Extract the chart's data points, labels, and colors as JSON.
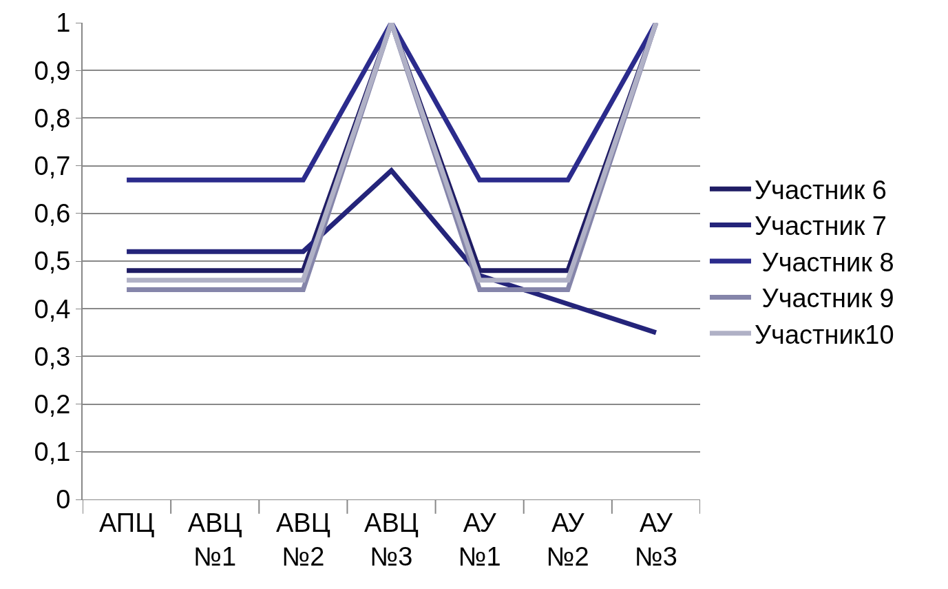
{
  "chart_data": {
    "type": "line",
    "categories": [
      "АПЦ",
      "АВЦ\n№1",
      "АВЦ\n№2",
      "АВЦ\n№3",
      "АУ\n№1",
      "АУ\n№2",
      "АУ\n№3"
    ],
    "series": [
      {
        "name": "Участник 6",
        "color": "#1f1c64",
        "values": [
          0.48,
          0.48,
          0.48,
          1,
          0.48,
          0.48,
          1
        ]
      },
      {
        "name": "Участник 7",
        "color": "#24247a",
        "values": [
          0.52,
          0.52,
          0.52,
          0.69,
          0.47,
          0.41,
          0.35
        ]
      },
      {
        "name": " Участник 8",
        "color": "#2b2b8c",
        "values": [
          0.67,
          0.67,
          0.67,
          1,
          0.67,
          0.67,
          1
        ]
      },
      {
        "name": " Участник 9",
        "color": "#8585aa",
        "values": [
          0.44,
          0.44,
          0.44,
          1,
          0.44,
          0.44,
          1
        ]
      },
      {
        "name": "Участник10",
        "color": "#b0b1c6",
        "values": [
          0.46,
          0.46,
          0.46,
          1,
          0.46,
          0.46,
          1
        ]
      }
    ],
    "ylim": [
      0,
      1
    ],
    "yticks": [
      {
        "value": 0,
        "label": "0"
      },
      {
        "value": 0.1,
        "label": "0,1"
      },
      {
        "value": 0.2,
        "label": "0,2"
      },
      {
        "value": 0.3,
        "label": "0,3"
      },
      {
        "value": 0.4,
        "label": "0,4"
      },
      {
        "value": 0.5,
        "label": "0,5"
      },
      {
        "value": 0.6,
        "label": "0,6"
      },
      {
        "value": 0.7,
        "label": "0,7"
      },
      {
        "value": 0.8,
        "label": "0,8"
      },
      {
        "value": 0.9,
        "label": "0,9"
      },
      {
        "value": 1,
        "label": "1"
      }
    ],
    "grid": "y",
    "legend": "right",
    "marker": "none",
    "line_style": "solid"
  }
}
